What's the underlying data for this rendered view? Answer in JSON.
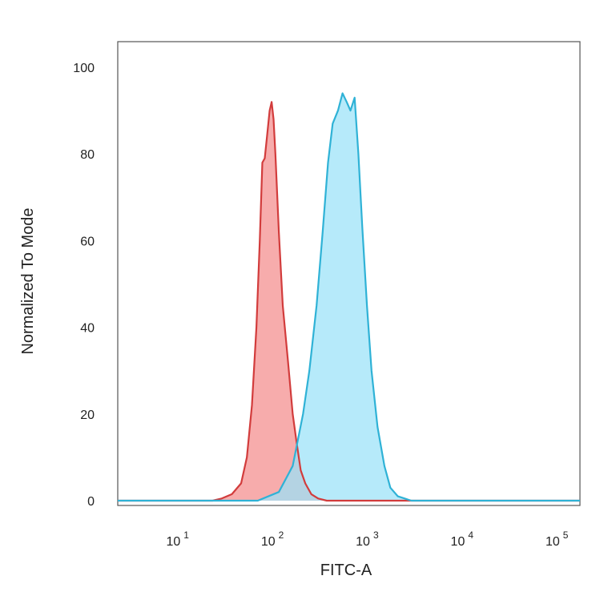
{
  "chart_data": {
    "type": "area",
    "xlabel": "FITC-A",
    "ylabel": "Normalized To Mode",
    "x_scale": "log",
    "xlim": [
      2,
      150000
    ],
    "ylim": [
      0,
      100
    ],
    "x_ticks": [
      {
        "value": 10,
        "base": "10",
        "exp": "1"
      },
      {
        "value": 100,
        "base": "10",
        "exp": "2"
      },
      {
        "value": 1000,
        "base": "10",
        "exp": "3"
      },
      {
        "value": 10000,
        "base": "10",
        "exp": "4"
      },
      {
        "value": 100000,
        "base": "10",
        "exp": "5"
      }
    ],
    "y_ticks": [
      "0",
      "20",
      "40",
      "60",
      "80",
      "100"
    ],
    "grid": false,
    "series": [
      {
        "color": "#d23c3c",
        "fill": "#f48c8c",
        "points": [
          [
            2,
            0
          ],
          [
            20,
            0
          ],
          [
            25,
            0.5
          ],
          [
            32,
            1.5
          ],
          [
            40,
            4
          ],
          [
            46,
            10
          ],
          [
            52,
            22
          ],
          [
            58,
            40
          ],
          [
            63,
            60
          ],
          [
            67,
            78
          ],
          [
            71,
            79
          ],
          [
            75,
            84
          ],
          [
            80,
            90
          ],
          [
            84,
            92
          ],
          [
            88,
            88
          ],
          [
            92,
            80
          ],
          [
            100,
            62
          ],
          [
            110,
            45
          ],
          [
            125,
            32
          ],
          [
            140,
            20
          ],
          [
            155,
            13
          ],
          [
            170,
            7
          ],
          [
            190,
            4
          ],
          [
            220,
            1.5
          ],
          [
            260,
            0.5
          ],
          [
            320,
            0
          ],
          [
            150000,
            0
          ]
        ]
      },
      {
        "color": "#2fb2d6",
        "fill": "#9ae2f8",
        "points": [
          [
            2,
            0
          ],
          [
            60,
            0
          ],
          [
            100,
            2
          ],
          [
            140,
            8
          ],
          [
            180,
            20
          ],
          [
            210,
            30
          ],
          [
            250,
            45
          ],
          [
            290,
            62
          ],
          [
            330,
            78
          ],
          [
            370,
            87
          ],
          [
            420,
            90
          ],
          [
            470,
            94
          ],
          [
            520,
            92
          ],
          [
            570,
            90
          ],
          [
            630,
            93
          ],
          [
            690,
            80
          ],
          [
            760,
            63
          ],
          [
            850,
            45
          ],
          [
            950,
            30
          ],
          [
            1100,
            17
          ],
          [
            1300,
            8
          ],
          [
            1500,
            3
          ],
          [
            1800,
            1
          ],
          [
            2500,
            0
          ],
          [
            150000,
            0
          ]
        ]
      }
    ]
  }
}
